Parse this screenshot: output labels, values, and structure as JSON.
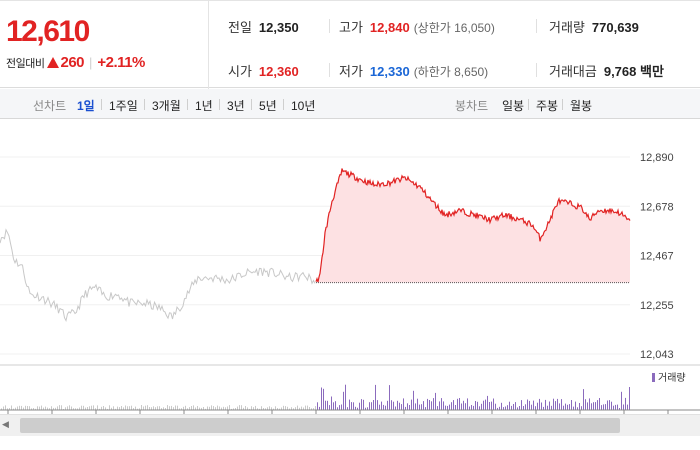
{
  "quote": {
    "price": "12,610",
    "change_label": "전일대비",
    "change_value": "260",
    "change_rate": "+2.11%"
  },
  "stats": {
    "prev_close": {
      "label": "전일",
      "value": "12,350"
    },
    "high": {
      "label": "고가",
      "value": "12,840",
      "note": "(상한가 16,050)"
    },
    "volume": {
      "label": "거래량",
      "value": "770,639"
    },
    "open": {
      "label": "시가",
      "value": "12,360"
    },
    "low": {
      "label": "저가",
      "value": "12,330",
      "note": "(하한가 8,650)"
    },
    "amount": {
      "label": "거래대금",
      "value": "9,768 백만"
    }
  },
  "toolbar": {
    "line_label": "선차트",
    "line_periods": [
      "1일",
      "1주일",
      "3개월",
      "1년",
      "3년",
      "5년",
      "10년"
    ],
    "active_period": "1일",
    "candle_label": "봉차트",
    "candle_periods": [
      "일봉",
      "주봉",
      "월봉"
    ]
  },
  "chart_data": {
    "type": "line",
    "y_ticks": [
      "12,890",
      "12,678",
      "12,467",
      "12,255",
      "12,043"
    ],
    "ylim": [
      12043,
      12890
    ],
    "previous_close": 12350,
    "volume_legend": "거래량",
    "colors": {
      "prev_day": "#c8c8c8",
      "today_line": "#e12323",
      "today_fill": "#fde1e3",
      "volume": "#8b6bbd"
    }
  }
}
